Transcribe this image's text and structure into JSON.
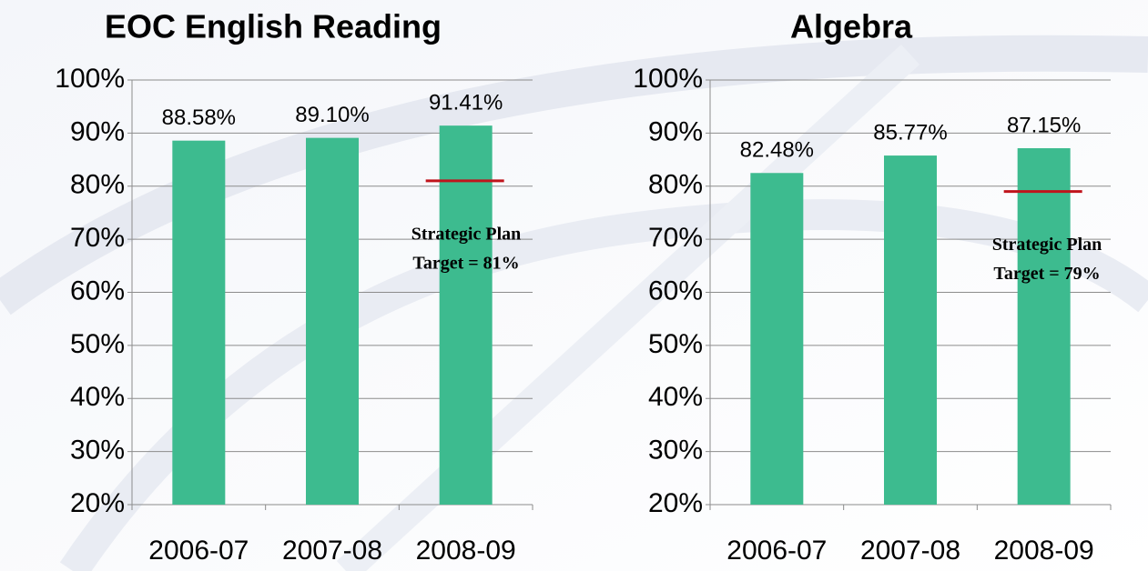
{
  "chart_data": [
    {
      "type": "bar",
      "title": "EOC English Reading",
      "categories": [
        "2006-07",
        "2007-08",
        "2008-09"
      ],
      "values": [
        88.58,
        89.1,
        91.41
      ],
      "value_labels": [
        "88.58%",
        "89.10%",
        "91.41%"
      ],
      "color": "#3dbb8f",
      "ylim": [
        20,
        100
      ],
      "yticks": [
        {
          "value": 20,
          "label": "20%"
        },
        {
          "value": 30,
          "label": "30%"
        },
        {
          "value": 40,
          "label": "40%"
        },
        {
          "value": 50,
          "label": "50%"
        },
        {
          "value": 60,
          "label": "60%"
        },
        {
          "value": 70,
          "label": "70%"
        },
        {
          "value": 80,
          "label": "80%"
        },
        {
          "value": 90,
          "label": "90%"
        },
        {
          "value": 100,
          "label": "100%"
        }
      ],
      "grid": true,
      "target": 81,
      "target_color": "#c0141c",
      "target_label": [
        "Strategic Plan",
        "Target = 81%"
      ]
    },
    {
      "type": "bar",
      "title": "Algebra",
      "categories": [
        "2006-07",
        "2007-08",
        "2008-09"
      ],
      "values": [
        82.48,
        85.77,
        87.15
      ],
      "value_labels": [
        "82.48%",
        "85.77%",
        "87.15%"
      ],
      "color": "#3dbb8f",
      "ylim": [
        20,
        100
      ],
      "yticks": [
        {
          "value": 20,
          "label": "20%"
        },
        {
          "value": 30,
          "label": "30%"
        },
        {
          "value": 40,
          "label": "40%"
        },
        {
          "value": 50,
          "label": "50%"
        },
        {
          "value": 60,
          "label": "60%"
        },
        {
          "value": 70,
          "label": "70%"
        },
        {
          "value": 80,
          "label": "80%"
        },
        {
          "value": 90,
          "label": "90%"
        },
        {
          "value": 100,
          "label": "100%"
        }
      ],
      "grid": true,
      "target": 79,
      "target_color": "#c0141c",
      "target_label": [
        "Strategic Plan",
        "Target = 79%"
      ]
    }
  ]
}
